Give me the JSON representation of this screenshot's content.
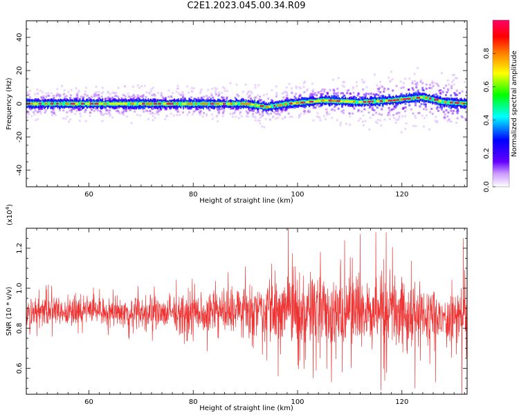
{
  "title": "C2E1.2023.045.00.34.R09",
  "chart_data": [
    {
      "type": "heatmap",
      "xlabel": "Height of straight line (km)",
      "ylabel": "Frequency (Hz)",
      "xlim": [
        48,
        132.5
      ],
      "ylim": [
        -50,
        50
      ],
      "xticks": [
        60,
        80,
        100,
        120
      ],
      "yticks": [
        -40,
        -20,
        0,
        20,
        40
      ],
      "colorbar": {
        "label": "Normalized spectral amplitude",
        "range": [
          0,
          1
        ],
        "ticks": [
          "0.0",
          "0.2",
          "0.4",
          "0.6",
          "0.8"
        ],
        "colormap": [
          "#ffffff",
          "#6600ff",
          "#0000ff",
          "#00ffff",
          "#00ff00",
          "#ffff00",
          "#ff8000",
          "#ff0000",
          "#ff0066"
        ]
      },
      "band": {
        "center_hz": [
          [
            48,
            0
          ],
          [
            70,
            0
          ],
          [
            90,
            0
          ],
          [
            94,
            -2
          ],
          [
            98,
            0
          ],
          [
            105,
            2
          ],
          [
            112,
            1
          ],
          [
            118,
            2
          ],
          [
            124,
            4
          ],
          [
            128,
            1
          ],
          [
            132.5,
            0
          ]
        ],
        "core_halfwidth_hz": 2,
        "outer_halfwidth_hz": 6
      }
    },
    {
      "type": "line",
      "xlabel": "Height of straight line (km)",
      "ylabel": "SNR (10 * v/v)",
      "y_multiplier_label": "(x10",
      "y_multiplier_exp": "4",
      "y_multiplier_close": ")",
      "xlim": [
        48,
        132.5
      ],
      "ylim": [
        0.47,
        1.3
      ],
      "xticks": [
        60,
        80,
        100,
        120
      ],
      "yticks": [
        "0.6",
        "0.8",
        "1.0",
        "1.2"
      ],
      "color": "#ee3333",
      "series": [
        {
          "envelope": [
            {
              "x": 48,
              "mean": 0.88,
              "amp": 0.09
            },
            {
              "x": 60,
              "mean": 0.89,
              "amp": 0.09
            },
            {
              "x": 70,
              "mean": 0.88,
              "amp": 0.1
            },
            {
              "x": 80,
              "mean": 0.87,
              "amp": 0.12
            },
            {
              "x": 90,
              "mean": 0.89,
              "amp": 0.15
            },
            {
              "x": 100,
              "mean": 0.89,
              "amp": 0.2
            },
            {
              "x": 110,
              "mean": 0.89,
              "amp": 0.22
            },
            {
              "x": 118,
              "mean": 0.88,
              "amp": 0.24
            },
            {
              "x": 124,
              "mean": 0.87,
              "amp": 0.18
            },
            {
              "x": 128,
              "mean": 0.84,
              "amp": 0.12
            },
            {
              "x": 132.5,
              "mean": 0.88,
              "amp": 0.18
            }
          ],
          "peaks": [
            [
              98.2,
              1.3
            ],
            [
              109,
              1.24
            ],
            [
              112,
              1.27
            ],
            [
              115,
              1.28
            ],
            [
              117,
              1.28
            ],
            [
              131.8,
              1.25
            ]
          ],
          "dips": [
            [
              96.3,
              0.56
            ],
            [
              103,
              0.55
            ],
            [
              106.5,
              0.53
            ],
            [
              116,
              0.49
            ],
            [
              122.5,
              0.5
            ],
            [
              126.5,
              0.53
            ],
            [
              131.5,
              0.47
            ]
          ]
        }
      ]
    }
  ]
}
